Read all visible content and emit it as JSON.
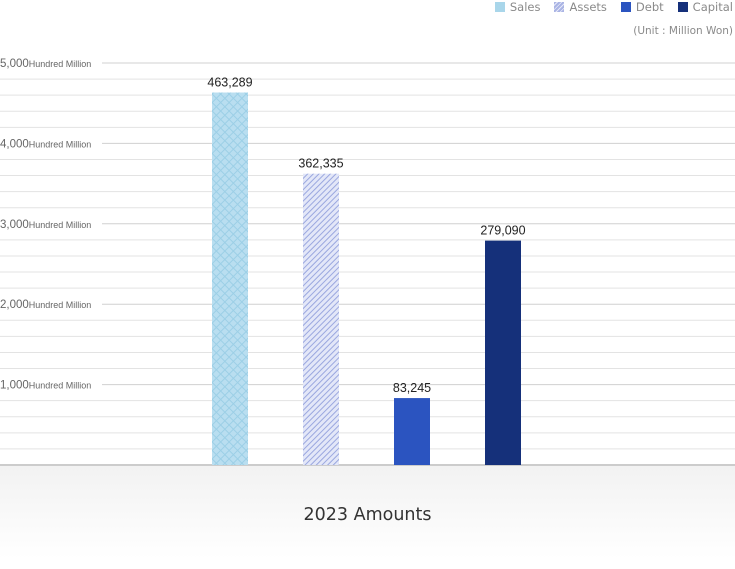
{
  "legend": {
    "sales": "Sales",
    "assets": "Assets",
    "debt": "Debt",
    "capital": "Capital"
  },
  "unit_note": "(Unit : Million Won)",
  "footer_label": "2023 Amounts",
  "colors": {
    "sales": "#a9d6ea",
    "assets": "#aab4e4",
    "debt": "#2b54c0",
    "capital": "#15307a"
  },
  "chart_data": {
    "type": "bar",
    "categories": [
      "Sales",
      "Assets",
      "Debt",
      "Capital"
    ],
    "values": [
      463289,
      362335,
      83245,
      279090
    ],
    "value_labels": [
      "463,289",
      "362,335",
      "83,245",
      "279,090"
    ],
    "ylim": [
      0,
      500000
    ],
    "y_ticks": [
      {
        "value": 100000,
        "num": "1,000",
        "unit": "Hundred Million"
      },
      {
        "value": 200000,
        "num": "2,000",
        "unit": "Hundred Million"
      },
      {
        "value": 300000,
        "num": "3,000",
        "unit": "Hundred Million"
      },
      {
        "value": 400000,
        "num": "4,000",
        "unit": "Hundred Million"
      },
      {
        "value": 500000,
        "num": "5,000",
        "unit": "Hundred Million"
      }
    ],
    "grid": true,
    "legend_position": "top-right",
    "xlabel": "2023 Amounts"
  }
}
